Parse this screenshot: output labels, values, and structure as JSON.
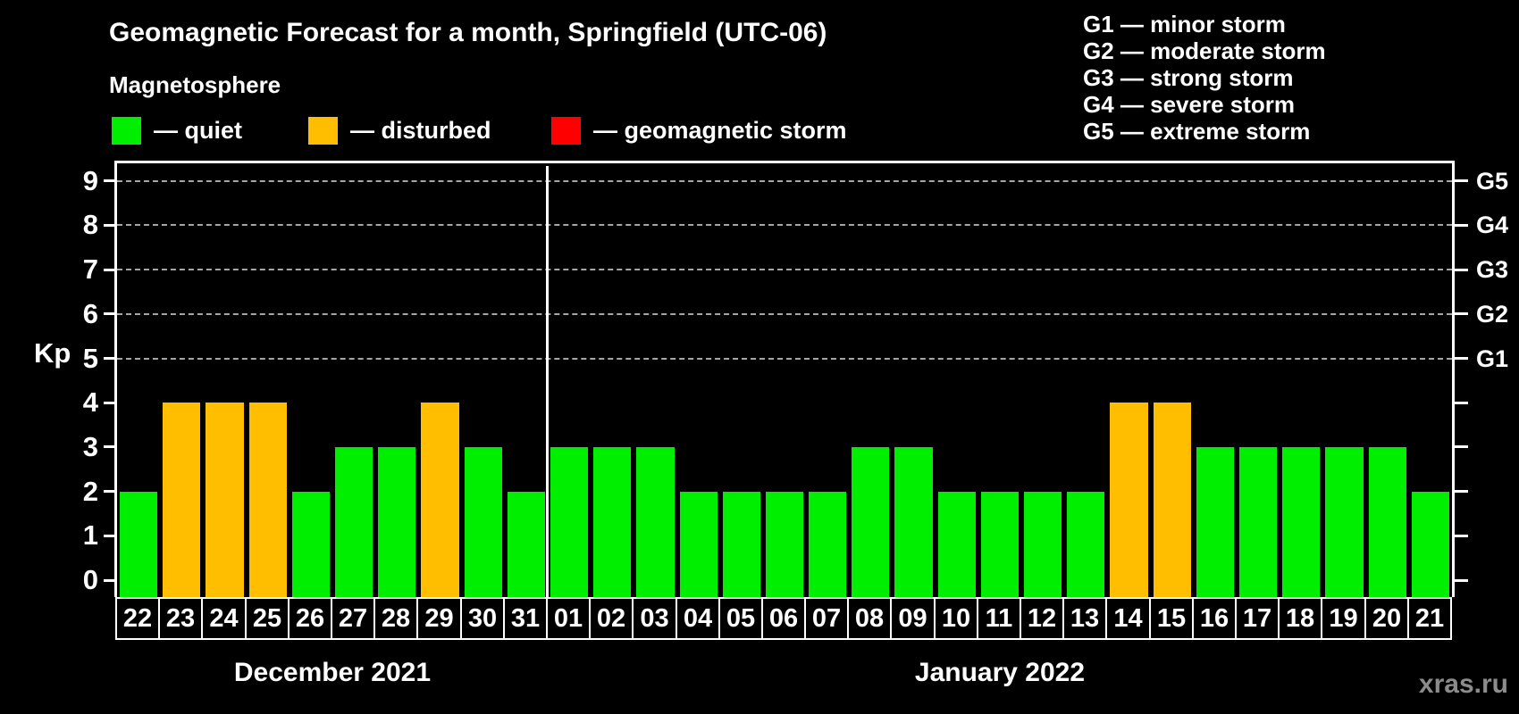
{
  "title": "Geomagnetic Forecast for a month, Springfield (UTC-06)",
  "subtitle": "Magnetosphere",
  "legend": [
    {
      "label": "— quiet",
      "state": "quiet",
      "color": "#00ee00"
    },
    {
      "label": "— disturbed",
      "state": "disturbed",
      "color": "#ffbf00"
    },
    {
      "label": "— geomagnetic storm",
      "state": "storm",
      "color": "#ff0000"
    }
  ],
  "g_scale_legend": [
    "G1 — minor storm",
    "G2 — moderate storm",
    "G3 — strong storm",
    "G4 — severe storm",
    "G5 — extreme storm"
  ],
  "watermark": "xras.ru",
  "chart_data": {
    "type": "bar",
    "title": "Geomagnetic Forecast for a month, Springfield (UTC-06)",
    "ylabel": "Kp",
    "ylim": [
      0,
      9
    ],
    "y_ticks": [
      0,
      1,
      2,
      3,
      4,
      5,
      6,
      7,
      8,
      9
    ],
    "grid_levels": [
      5,
      6,
      7,
      8,
      9
    ],
    "grid_on": true,
    "legend_position": "top",
    "right_axis_labels": [
      {
        "value": 5,
        "label": "G1"
      },
      {
        "value": 6,
        "label": "G2"
      },
      {
        "value": 7,
        "label": "G3"
      },
      {
        "value": 8,
        "label": "G4"
      },
      {
        "value": 9,
        "label": "G5"
      }
    ],
    "colors": {
      "quiet": "#00ee00",
      "disturbed": "#ffbf00",
      "storm": "#ff0000"
    },
    "months": [
      {
        "label": "December 2021",
        "days": [
          {
            "day": "22",
            "kp": 2,
            "state": "quiet"
          },
          {
            "day": "23",
            "kp": 4,
            "state": "disturbed"
          },
          {
            "day": "24",
            "kp": 4,
            "state": "disturbed"
          },
          {
            "day": "25",
            "kp": 4,
            "state": "disturbed"
          },
          {
            "day": "26",
            "kp": 2,
            "state": "quiet"
          },
          {
            "day": "27",
            "kp": 3,
            "state": "quiet"
          },
          {
            "day": "28",
            "kp": 3,
            "state": "quiet"
          },
          {
            "day": "29",
            "kp": 4,
            "state": "disturbed"
          },
          {
            "day": "30",
            "kp": 3,
            "state": "quiet"
          },
          {
            "day": "31",
            "kp": 2,
            "state": "quiet"
          }
        ]
      },
      {
        "label": "January 2022",
        "days": [
          {
            "day": "01",
            "kp": 3,
            "state": "quiet"
          },
          {
            "day": "02",
            "kp": 3,
            "state": "quiet"
          },
          {
            "day": "03",
            "kp": 3,
            "state": "quiet"
          },
          {
            "day": "04",
            "kp": 2,
            "state": "quiet"
          },
          {
            "day": "05",
            "kp": 2,
            "state": "quiet"
          },
          {
            "day": "06",
            "kp": 2,
            "state": "quiet"
          },
          {
            "day": "07",
            "kp": 2,
            "state": "quiet"
          },
          {
            "day": "08",
            "kp": 3,
            "state": "quiet"
          },
          {
            "day": "09",
            "kp": 3,
            "state": "quiet"
          },
          {
            "day": "10",
            "kp": 2,
            "state": "quiet"
          },
          {
            "day": "11",
            "kp": 2,
            "state": "quiet"
          },
          {
            "day": "12",
            "kp": 2,
            "state": "quiet"
          },
          {
            "day": "13",
            "kp": 2,
            "state": "quiet"
          },
          {
            "day": "14",
            "kp": 4,
            "state": "disturbed"
          },
          {
            "day": "15",
            "kp": 4,
            "state": "disturbed"
          },
          {
            "day": "16",
            "kp": 3,
            "state": "quiet"
          },
          {
            "day": "17",
            "kp": 3,
            "state": "quiet"
          },
          {
            "day": "18",
            "kp": 3,
            "state": "quiet"
          },
          {
            "day": "19",
            "kp": 3,
            "state": "quiet"
          },
          {
            "day": "20",
            "kp": 3,
            "state": "quiet"
          },
          {
            "day": "21",
            "kp": 2,
            "state": "quiet"
          }
        ]
      }
    ]
  }
}
